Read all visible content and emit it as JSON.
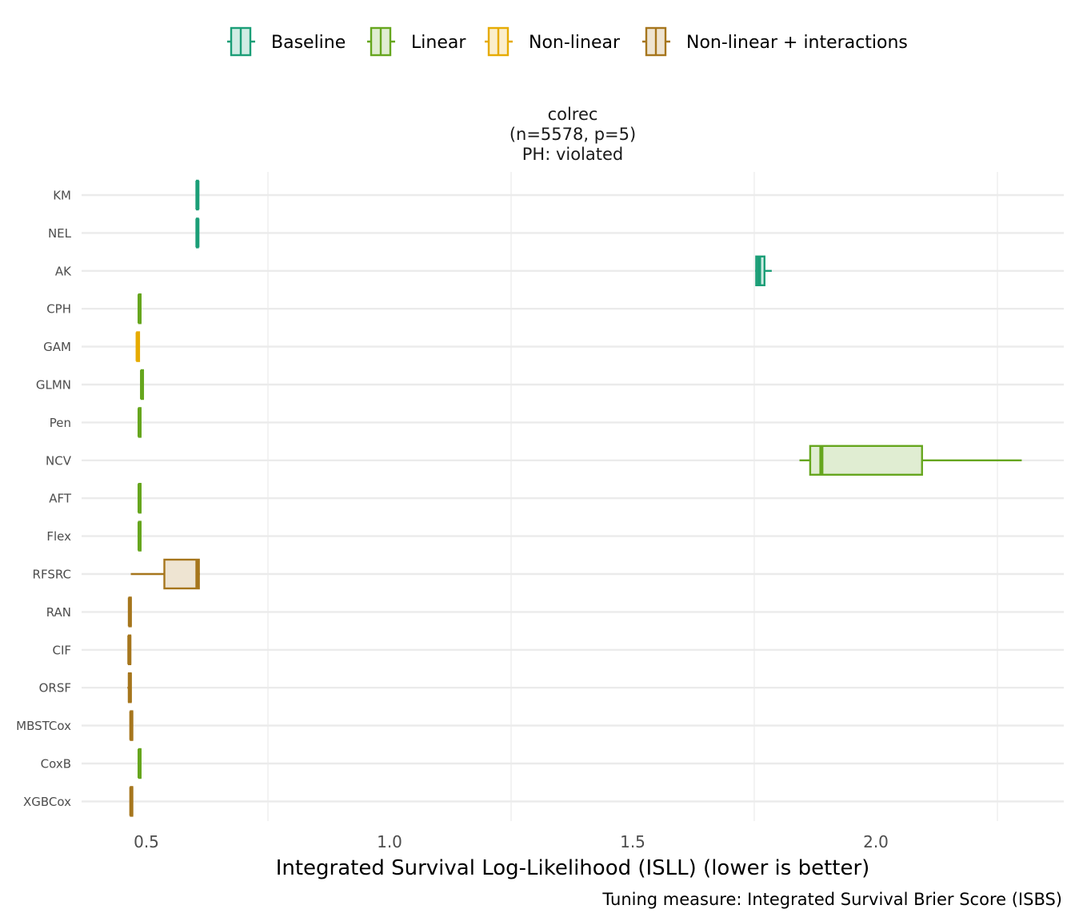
{
  "chart_data": {
    "type": "boxplot",
    "orientation": "horizontal",
    "facet": {
      "title_lines": [
        "colrec",
        "(n=5578, p=5)",
        "PH: violated"
      ]
    },
    "xlabel": "Integrated Survival Log-Likelihood (ISLL) (lower is better)",
    "caption": "Tuning measure: Integrated Survival Brier Score (ISBS)",
    "xlim": [
      0.37,
      2.39
    ],
    "x_ticks": [
      0.5,
      1.0,
      1.5,
      2.0
    ],
    "x_tick_labels": [
      "0.5",
      "1.0",
      "1.5",
      "2.0"
    ],
    "x_minor_ticks": [
      0.75,
      1.25,
      1.75,
      2.25
    ],
    "legend": {
      "position": "top",
      "items": [
        {
          "key": "baseline",
          "label": "Baseline",
          "color": "#1b9e77",
          "fill": "#d1ece4"
        },
        {
          "key": "linear",
          "label": "Linear",
          "color": "#66a61e",
          "fill": "#e0edd2"
        },
        {
          "key": "nonlinear",
          "label": "Non-linear",
          "color": "#e6ab02",
          "fill": "#fbeecc"
        },
        {
          "key": "interactions",
          "label": "Non-linear + interactions",
          "color": "#a6761d",
          "fill": "#eee4d2"
        }
      ]
    },
    "categories": [
      "KM",
      "NEL",
      "AK",
      "CPH",
      "GAM",
      "GLMN",
      "Pen",
      "NCV",
      "AFT",
      "Flex",
      "RFSRC",
      "RAN",
      "CIF",
      "ORSF",
      "MBSTCox",
      "CoxB",
      "XGBCox"
    ],
    "boxes": [
      {
        "model": "KM",
        "group": "baseline",
        "min": 0.604,
        "q1": 0.604,
        "median": 0.605,
        "q3": 0.606,
        "max": 0.606
      },
      {
        "model": "NEL",
        "group": "baseline",
        "min": 0.604,
        "q1": 0.604,
        "median": 0.605,
        "q3": 0.606,
        "max": 0.606
      },
      {
        "model": "AK",
        "group": "baseline",
        "min": 1.752,
        "q1": 1.754,
        "median": 1.76,
        "q3": 1.771,
        "max": 1.786
      },
      {
        "model": "CPH",
        "group": "linear",
        "min": 0.483,
        "q1": 0.485,
        "median": 0.486,
        "q3": 0.488,
        "max": 0.489
      },
      {
        "model": "GAM",
        "group": "nonlinear",
        "min": 0.48,
        "q1": 0.481,
        "median": 0.482,
        "q3": 0.485,
        "max": 0.486
      },
      {
        "model": "GLMN",
        "group": "linear",
        "min": 0.489,
        "q1": 0.49,
        "median": 0.491,
        "q3": 0.493,
        "max": 0.494
      },
      {
        "model": "Pen",
        "group": "linear",
        "min": 0.483,
        "q1": 0.485,
        "median": 0.486,
        "q3": 0.488,
        "max": 0.489
      },
      {
        "model": "NCV",
        "group": "linear",
        "min": 1.843,
        "q1": 1.865,
        "median": 1.888,
        "q3": 2.095,
        "max": 2.3
      },
      {
        "model": "AFT",
        "group": "linear",
        "min": 0.483,
        "q1": 0.485,
        "median": 0.486,
        "q3": 0.488,
        "max": 0.489
      },
      {
        "model": "Flex",
        "group": "linear",
        "min": 0.483,
        "q1": 0.485,
        "median": 0.486,
        "q3": 0.488,
        "max": 0.489
      },
      {
        "model": "RFSRC",
        "group": "interactions",
        "min": 0.468,
        "q1": 0.537,
        "median": 0.605,
        "q3": 0.608,
        "max": 0.61
      },
      {
        "model": "RAN",
        "group": "interactions",
        "min": 0.464,
        "q1": 0.465,
        "median": 0.466,
        "q3": 0.468,
        "max": 0.469
      },
      {
        "model": "CIF",
        "group": "interactions",
        "min": 0.463,
        "q1": 0.464,
        "median": 0.465,
        "q3": 0.467,
        "max": 0.468
      },
      {
        "model": "ORSF",
        "group": "interactions",
        "min": 0.461,
        "q1": 0.464,
        "median": 0.466,
        "q3": 0.468,
        "max": 0.469
      },
      {
        "model": "MBSTCox",
        "group": "interactions",
        "min": 0.467,
        "q1": 0.468,
        "median": 0.469,
        "q3": 0.471,
        "max": 0.472
      },
      {
        "model": "CoxB",
        "group": "linear",
        "min": 0.483,
        "q1": 0.485,
        "median": 0.486,
        "q3": 0.488,
        "max": 0.489
      },
      {
        "model": "XGBCox",
        "group": "interactions",
        "min": 0.467,
        "q1": 0.468,
        "median": 0.469,
        "q3": 0.471,
        "max": 0.472
      }
    ]
  }
}
